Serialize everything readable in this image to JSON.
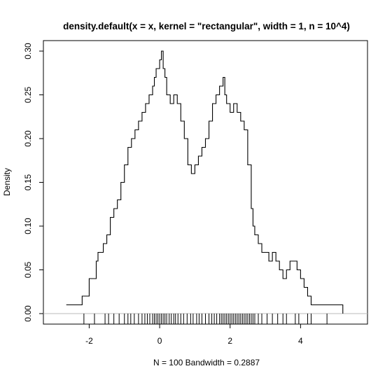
{
  "chart_data": {
    "type": "line",
    "title": "density.default(x = x, kernel = \"rectangular\", width = 1, n = 10^4)",
    "xlabel": "N = 100   Bandwidth = 0.2887",
    "ylabel": "Density",
    "xlim": [
      -3.3,
      5.9
    ],
    "ylim": [
      -0.012,
      0.312
    ],
    "x_ticks": [
      -2,
      0,
      2,
      4
    ],
    "y_ticks": [
      0.0,
      0.05,
      0.1,
      0.15,
      0.2,
      0.25,
      0.3
    ],
    "x_tick_labels": [
      "-2",
      "0",
      "2",
      "4"
    ],
    "y_tick_labels": [
      "0.00",
      "0.05",
      "0.10",
      "0.15",
      "0.20",
      "0.25",
      "0.30"
    ],
    "grid": false,
    "baseline": 0,
    "series": [
      {
        "kind": "step",
        "x": [
          -2.65,
          -2.2,
          -2.0,
          -1.8,
          -1.75,
          -1.6,
          -1.5,
          -1.4,
          -1.3,
          -1.2,
          -1.1,
          -1.0,
          -0.9,
          -0.8,
          -0.7,
          -0.6,
          -0.5,
          -0.4,
          -0.3,
          -0.2,
          -0.15,
          -0.1,
          0.0,
          0.05,
          0.1,
          0.15,
          0.2,
          0.3,
          0.4,
          0.5,
          0.6,
          0.7,
          0.8,
          0.9,
          1.0,
          1.1,
          1.2,
          1.3,
          1.4,
          1.5,
          1.6,
          1.7,
          1.8,
          1.85,
          1.9,
          2.0,
          2.1,
          2.2,
          2.3,
          2.4,
          2.5,
          2.6,
          2.65,
          2.7,
          2.8,
          2.9,
          3.0,
          3.1,
          3.2,
          3.3,
          3.4,
          3.5,
          3.6,
          3.7,
          3.8,
          3.9,
          4.0,
          4.1,
          4.2,
          4.3,
          4.5,
          4.7,
          4.8,
          5.2
        ],
        "y": [
          0.01,
          0.02,
          0.04,
          0.06,
          0.07,
          0.08,
          0.09,
          0.11,
          0.12,
          0.13,
          0.15,
          0.17,
          0.19,
          0.2,
          0.21,
          0.22,
          0.23,
          0.24,
          0.25,
          0.26,
          0.27,
          0.28,
          0.29,
          0.3,
          0.28,
          0.27,
          0.25,
          0.24,
          0.25,
          0.24,
          0.22,
          0.2,
          0.17,
          0.16,
          0.17,
          0.18,
          0.19,
          0.2,
          0.22,
          0.24,
          0.25,
          0.26,
          0.27,
          0.25,
          0.24,
          0.23,
          0.24,
          0.23,
          0.22,
          0.21,
          0.17,
          0.12,
          0.1,
          0.09,
          0.08,
          0.07,
          0.07,
          0.06,
          0.07,
          0.06,
          0.05,
          0.04,
          0.05,
          0.06,
          0.06,
          0.05,
          0.04,
          0.03,
          0.02,
          0.01,
          0.01,
          0.01,
          0.01,
          0.01
        ],
        "x_end": 5.2
      }
    ],
    "rug": [
      -2.15,
      -1.85,
      -1.55,
      -1.45,
      -1.3,
      -1.15,
      -1.0,
      -0.9,
      -0.82,
      -0.72,
      -0.6,
      -0.5,
      -0.42,
      -0.35,
      -0.28,
      -0.2,
      -0.15,
      -0.1,
      -0.05,
      0.0,
      0.05,
      0.1,
      0.15,
      0.2,
      0.27,
      0.33,
      0.4,
      0.45,
      0.52,
      0.6,
      0.68,
      0.78,
      0.88,
      0.95,
      1.05,
      1.12,
      1.2,
      1.3,
      1.4,
      1.48,
      1.55,
      1.62,
      1.7,
      1.75,
      1.8,
      1.85,
      1.9,
      1.95,
      2.0,
      2.05,
      2.1,
      2.15,
      2.2,
      2.25,
      2.3,
      2.35,
      2.4,
      2.45,
      2.5,
      2.55,
      2.6,
      2.65,
      2.7,
      2.8,
      2.9,
      3.05,
      3.2,
      3.35,
      3.5,
      3.6,
      3.85,
      3.95,
      4.2,
      4.3,
      4.75
    ]
  }
}
